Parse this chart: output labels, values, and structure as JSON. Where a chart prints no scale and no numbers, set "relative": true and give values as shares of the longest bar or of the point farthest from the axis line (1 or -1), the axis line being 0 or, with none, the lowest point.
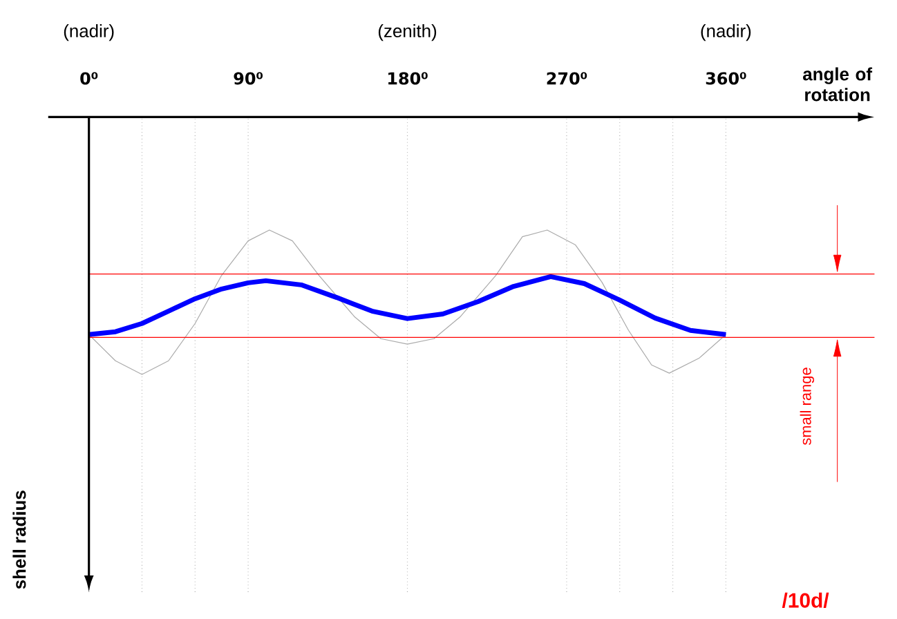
{
  "chart_data": {
    "type": "line",
    "relative": true,
    "xlabel": "angle of rotation",
    "xlim": [
      -23,
      444
    ],
    "xticks": [
      {
        "value": 0,
        "label": "0⁰"
      },
      {
        "value": 30,
        "label": null
      },
      {
        "value": 60,
        "label": null
      },
      {
        "value": 90,
        "label": "90⁰"
      },
      {
        "value": 180,
        "label": "180⁰"
      },
      {
        "value": 270,
        "label": "270⁰"
      },
      {
        "value": 300,
        "label": null
      },
      {
        "value": 330,
        "label": null
      },
      {
        "value": 360,
        "label": "360⁰"
      }
    ],
    "grid": "x",
    "tick_labels": "x",
    "marker": "none",
    "line_style": "solid",
    "series": [
      {
        "color": "#aaaaaa",
        "x": [
          0,
          15,
          30,
          45,
          60,
          75,
          90,
          102,
          115,
          130,
          150,
          165,
          180,
          195,
          210,
          230,
          245,
          259,
          275,
          290,
          305,
          318,
          328,
          345,
          360
        ],
        "values": [
          -0.845,
          -0.947,
          -1,
          -0.947,
          -0.802,
          -0.615,
          -0.481,
          -0.439,
          -0.481,
          -0.615,
          -0.775,
          -0.861,
          -0.882,
          -0.861,
          -0.775,
          -0.615,
          -0.465,
          -0.439,
          -0.497,
          -0.642,
          -0.829,
          -0.963,
          -0.995,
          -0.936,
          -0.845
        ]
      },
      {
        "color": "#0000ff",
        "x": [
          0,
          15,
          30,
          45,
          60,
          75,
          90,
          100,
          120,
          140,
          160,
          180,
          200,
          220,
          240,
          261,
          280,
          300,
          320,
          340,
          360
        ],
        "values": [
          -0.845,
          -0.834,
          -0.802,
          -0.754,
          -0.706,
          -0.668,
          -0.644,
          -0.636,
          -0.652,
          -0.701,
          -0.754,
          -0.783,
          -0.765,
          -0.717,
          -0.658,
          -0.62,
          -0.647,
          -0.711,
          -0.781,
          -0.829,
          -0.845
        ]
      }
    ],
    "ref_lines": [
      {
        "axis": "y",
        "value": -0.61,
        "color": "#ff0000"
      },
      {
        "axis": "y",
        "value": -0.856,
        "color": "#ff0000"
      }
    ],
    "annotations": [
      "(nadir)",
      "(zenith)",
      "(nadir)",
      "small range",
      "**/10d/**",
      "**shell radius**"
    ]
  }
}
